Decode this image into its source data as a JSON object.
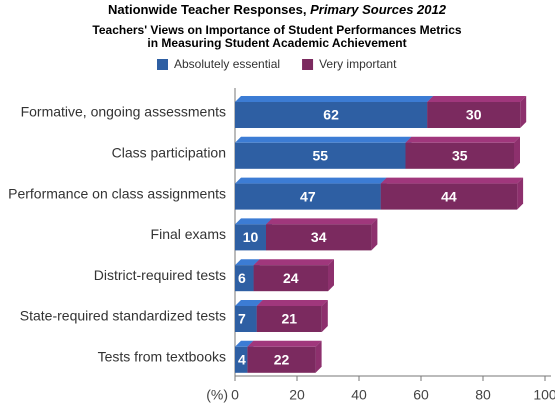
{
  "chart_data": {
    "type": "stacked-barh",
    "title": "Nationwide Teacher Responses,",
    "title_italic": "Primary Sources 2012",
    "subtitle": [
      "Teachers' Views on Importance of Student Performances Metrics",
      "in Measuring Student Academic Achievement"
    ],
    "xlabel": "(%)",
    "categories": [
      "Formative, ongoing assessments",
      "Class participation",
      "Performance on class assignments",
      "Final exams",
      "District-required tests",
      "State-required standardized tests",
      "Tests from textbooks"
    ],
    "series": [
      {
        "name": "Absolutely essential",
        "color": "#2e5fa3",
        "values": [
          62,
          55,
          47,
          10,
          6,
          7,
          4
        ]
      },
      {
        "name": "Very important",
        "color": "#7b2a5f",
        "values": [
          30,
          35,
          44,
          34,
          24,
          21,
          22
        ]
      }
    ],
    "xlim": [
      0,
      100
    ],
    "xticks": [
      0,
      20,
      40,
      60,
      80,
      100
    ]
  }
}
